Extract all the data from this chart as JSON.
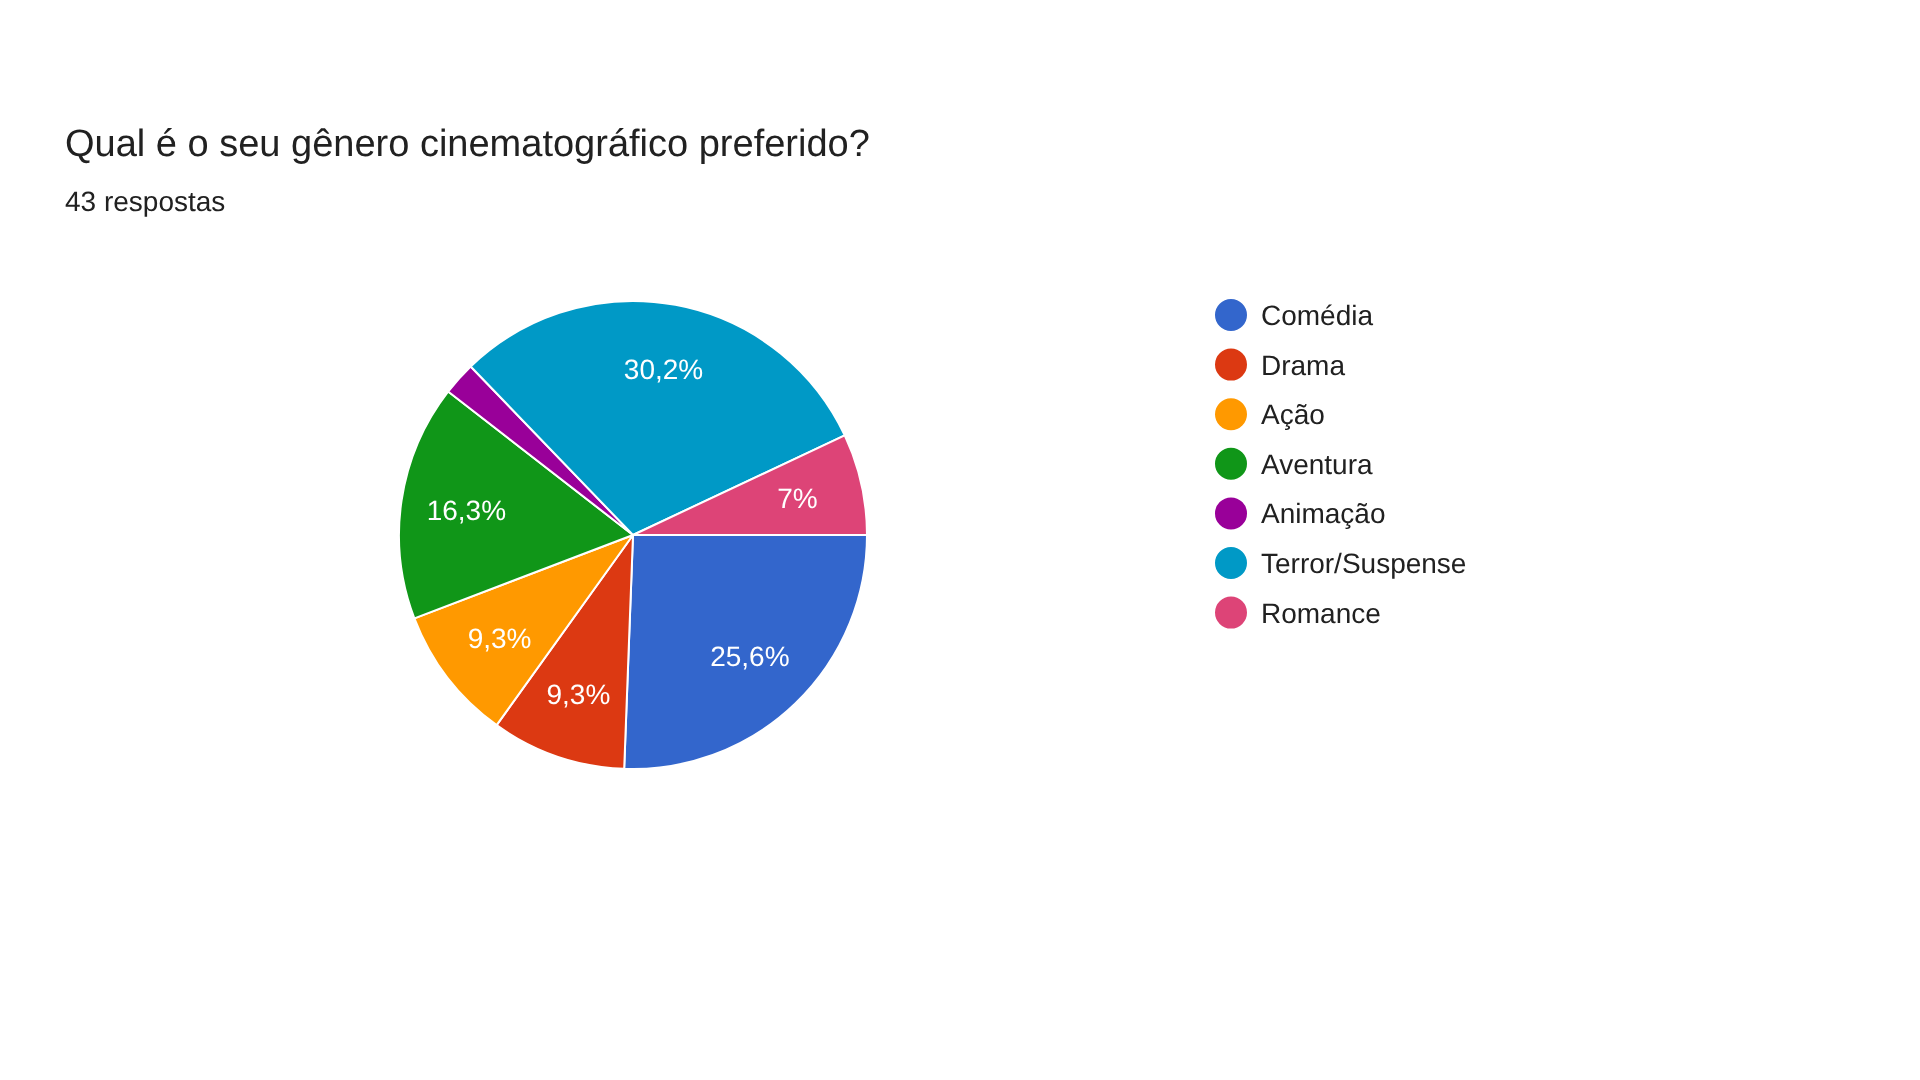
{
  "chart_data": {
    "type": "pie",
    "title": "Qual é o seu gênero cinematográfico preferido?",
    "subtitle": "43 respostas",
    "categories": [
      "Comédia",
      "Drama",
      "Ação",
      "Aventura",
      "Animação",
      "Terror/Suspense",
      "Romance"
    ],
    "values": [
      25.6,
      9.3,
      9.3,
      16.3,
      2.3,
      30.2,
      7
    ],
    "value_labels": [
      "25,6%",
      "9,3%",
      "9,3%",
      "16,3%",
      null,
      "30,2%",
      "7%"
    ],
    "colors": [
      "#3366cc",
      "#dc3912",
      "#ff9900",
      "#109618",
      "#990099",
      "#0099c6",
      "#dd4477"
    ],
    "legend": "right"
  }
}
